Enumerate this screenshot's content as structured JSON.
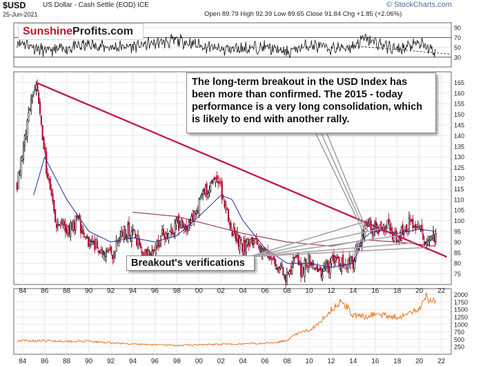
{
  "header": {
    "symbol": "$USD",
    "description": "US Dollar - Cash Settle (EOD) ICE",
    "date": "25-Jun-2021",
    "ohlc": "Open 89.79  High 92.39  Low 89.65  Close 91.84  Chg +1.85 (+2.06%)",
    "brand": "© StockCharts.com"
  },
  "logo": {
    "part1": "Sunshine",
    "part2": "Profits.com"
  },
  "annotations": {
    "callout": "The long-term breakout in the USD Index has been more than confirmed. The 2015 - today performance is a very long consolidation, which is likely to end with another rally.",
    "verifications": "Breakout's verifications"
  },
  "colors": {
    "trendline": "#c2185b",
    "ma_short": "#1f2f9c",
    "ma_long": "#8b1a3a",
    "candle_up": "#000000",
    "candle_down": "#b5123a",
    "volume": "#e87722",
    "rsi": "#111111"
  },
  "chart_data": [
    {
      "type": "line",
      "name": "rsi-panel",
      "ylim": [
        10,
        100
      ],
      "y_ticks": [
        30,
        50,
        70,
        90
      ],
      "reference_lines": [
        70,
        30
      ],
      "x": [
        1984,
        1986,
        1988,
        1990,
        1992,
        1994,
        1996,
        1998,
        2000,
        2002,
        2004,
        2006,
        2008,
        2010,
        2012,
        2014,
        2015,
        2016,
        2018,
        2020,
        2021.5
      ],
      "values": [
        60,
        42,
        48,
        55,
        50,
        52,
        58,
        64,
        55,
        45,
        48,
        50,
        40,
        55,
        47,
        52,
        68,
        60,
        45,
        58,
        40
      ]
    },
    {
      "type": "line",
      "name": "price-panel",
      "ylim": [
        70,
        170
      ],
      "y_ticks": [
        75,
        80,
        85,
        90,
        95,
        100,
        105,
        110,
        115,
        120,
        125,
        130,
        135,
        140,
        145,
        150,
        155,
        160,
        165
      ],
      "x_ticks": [
        "84",
        "86",
        "88",
        "90",
        "92",
        "94",
        "96",
        "98",
        "00",
        "02",
        "04",
        "06",
        "08",
        "10",
        "12",
        "14",
        "16",
        "18",
        "20",
        "22"
      ],
      "x": [
        1983.5,
        1984,
        1985.2,
        1986,
        1987,
        1988,
        1989,
        1990,
        1991,
        1992,
        1993,
        1994,
        1995,
        1996,
        1997,
        1998,
        1999,
        2000,
        2001,
        2001.7,
        2002.5,
        2003,
        2004,
        2005,
        2006,
        2007,
        2008,
        2008.9,
        2009.3,
        2010,
        2011,
        2012,
        2013,
        2014,
        2015,
        2016,
        2017,
        2018,
        2019,
        2020,
        2020.5,
        2021,
        2021.5
      ],
      "values": [
        118,
        135,
        164,
        130,
        100,
        95,
        100,
        90,
        88,
        83,
        95,
        95,
        84,
        88,
        95,
        98,
        98,
        108,
        117,
        120,
        106,
        96,
        87,
        90,
        86,
        80,
        73,
        86,
        76,
        82,
        74,
        80,
        81,
        80,
        98,
        96,
        98,
        91,
        98,
        97,
        90,
        92,
        91.84
      ],
      "series_ma_short": {
        "x": [
          1985,
          1986,
          1988,
          1990,
          1992,
          1994,
          1996,
          1998,
          2000,
          2002,
          2003,
          2004,
          2006,
          2008,
          2010,
          2012,
          2014,
          2015,
          2016,
          2018,
          2020,
          2021.5
        ],
        "values": [
          112,
          130,
          110,
          95,
          90,
          92,
          90,
          93,
          102,
          112,
          110,
          100,
          87,
          80,
          80,
          78,
          80,
          92,
          96,
          94,
          96,
          95
        ]
      },
      "series_ma_long": {
        "x": [
          1994,
          1998,
          2001,
          2004,
          2008,
          2012,
          2015,
          2018,
          2021.5
        ],
        "values": [
          104,
          102,
          98,
          94,
          90,
          88,
          91,
          90,
          88
        ]
      },
      "trendline": {
        "x": [
          1985.2,
          2022.5
        ],
        "values": [
          165,
          83
        ]
      },
      "verification_points": [
        2015,
        2016.5,
        2018,
        2019.5,
        2020.5
      ]
    },
    {
      "type": "area",
      "name": "volume-panel",
      "ylim": [
        0,
        2200
      ],
      "y_ticks": [
        250,
        500,
        750,
        1000,
        1250,
        1500,
        1750,
        2000
      ],
      "x_ticks": [
        "84",
        "86",
        "88",
        "90",
        "92",
        "94",
        "96",
        "98",
        "00",
        "02",
        "04",
        "06",
        "08",
        "10",
        "12",
        "14",
        "16",
        "18",
        "20",
        "22"
      ],
      "x": [
        1983.5,
        1986,
        1990,
        1994,
        1998,
        2002,
        2005,
        2007,
        2008,
        2009,
        2010,
        2011,
        2012,
        2013,
        2014,
        2015,
        2016,
        2018,
        2019,
        2020,
        2020.5,
        2021,
        2021.5
      ],
      "values": [
        450,
        450,
        430,
        340,
        300,
        330,
        360,
        400,
        470,
        700,
        800,
        1100,
        1500,
        1800,
        1300,
        1250,
        1350,
        1250,
        1350,
        1500,
        2000,
        1800,
        1850
      ]
    }
  ]
}
